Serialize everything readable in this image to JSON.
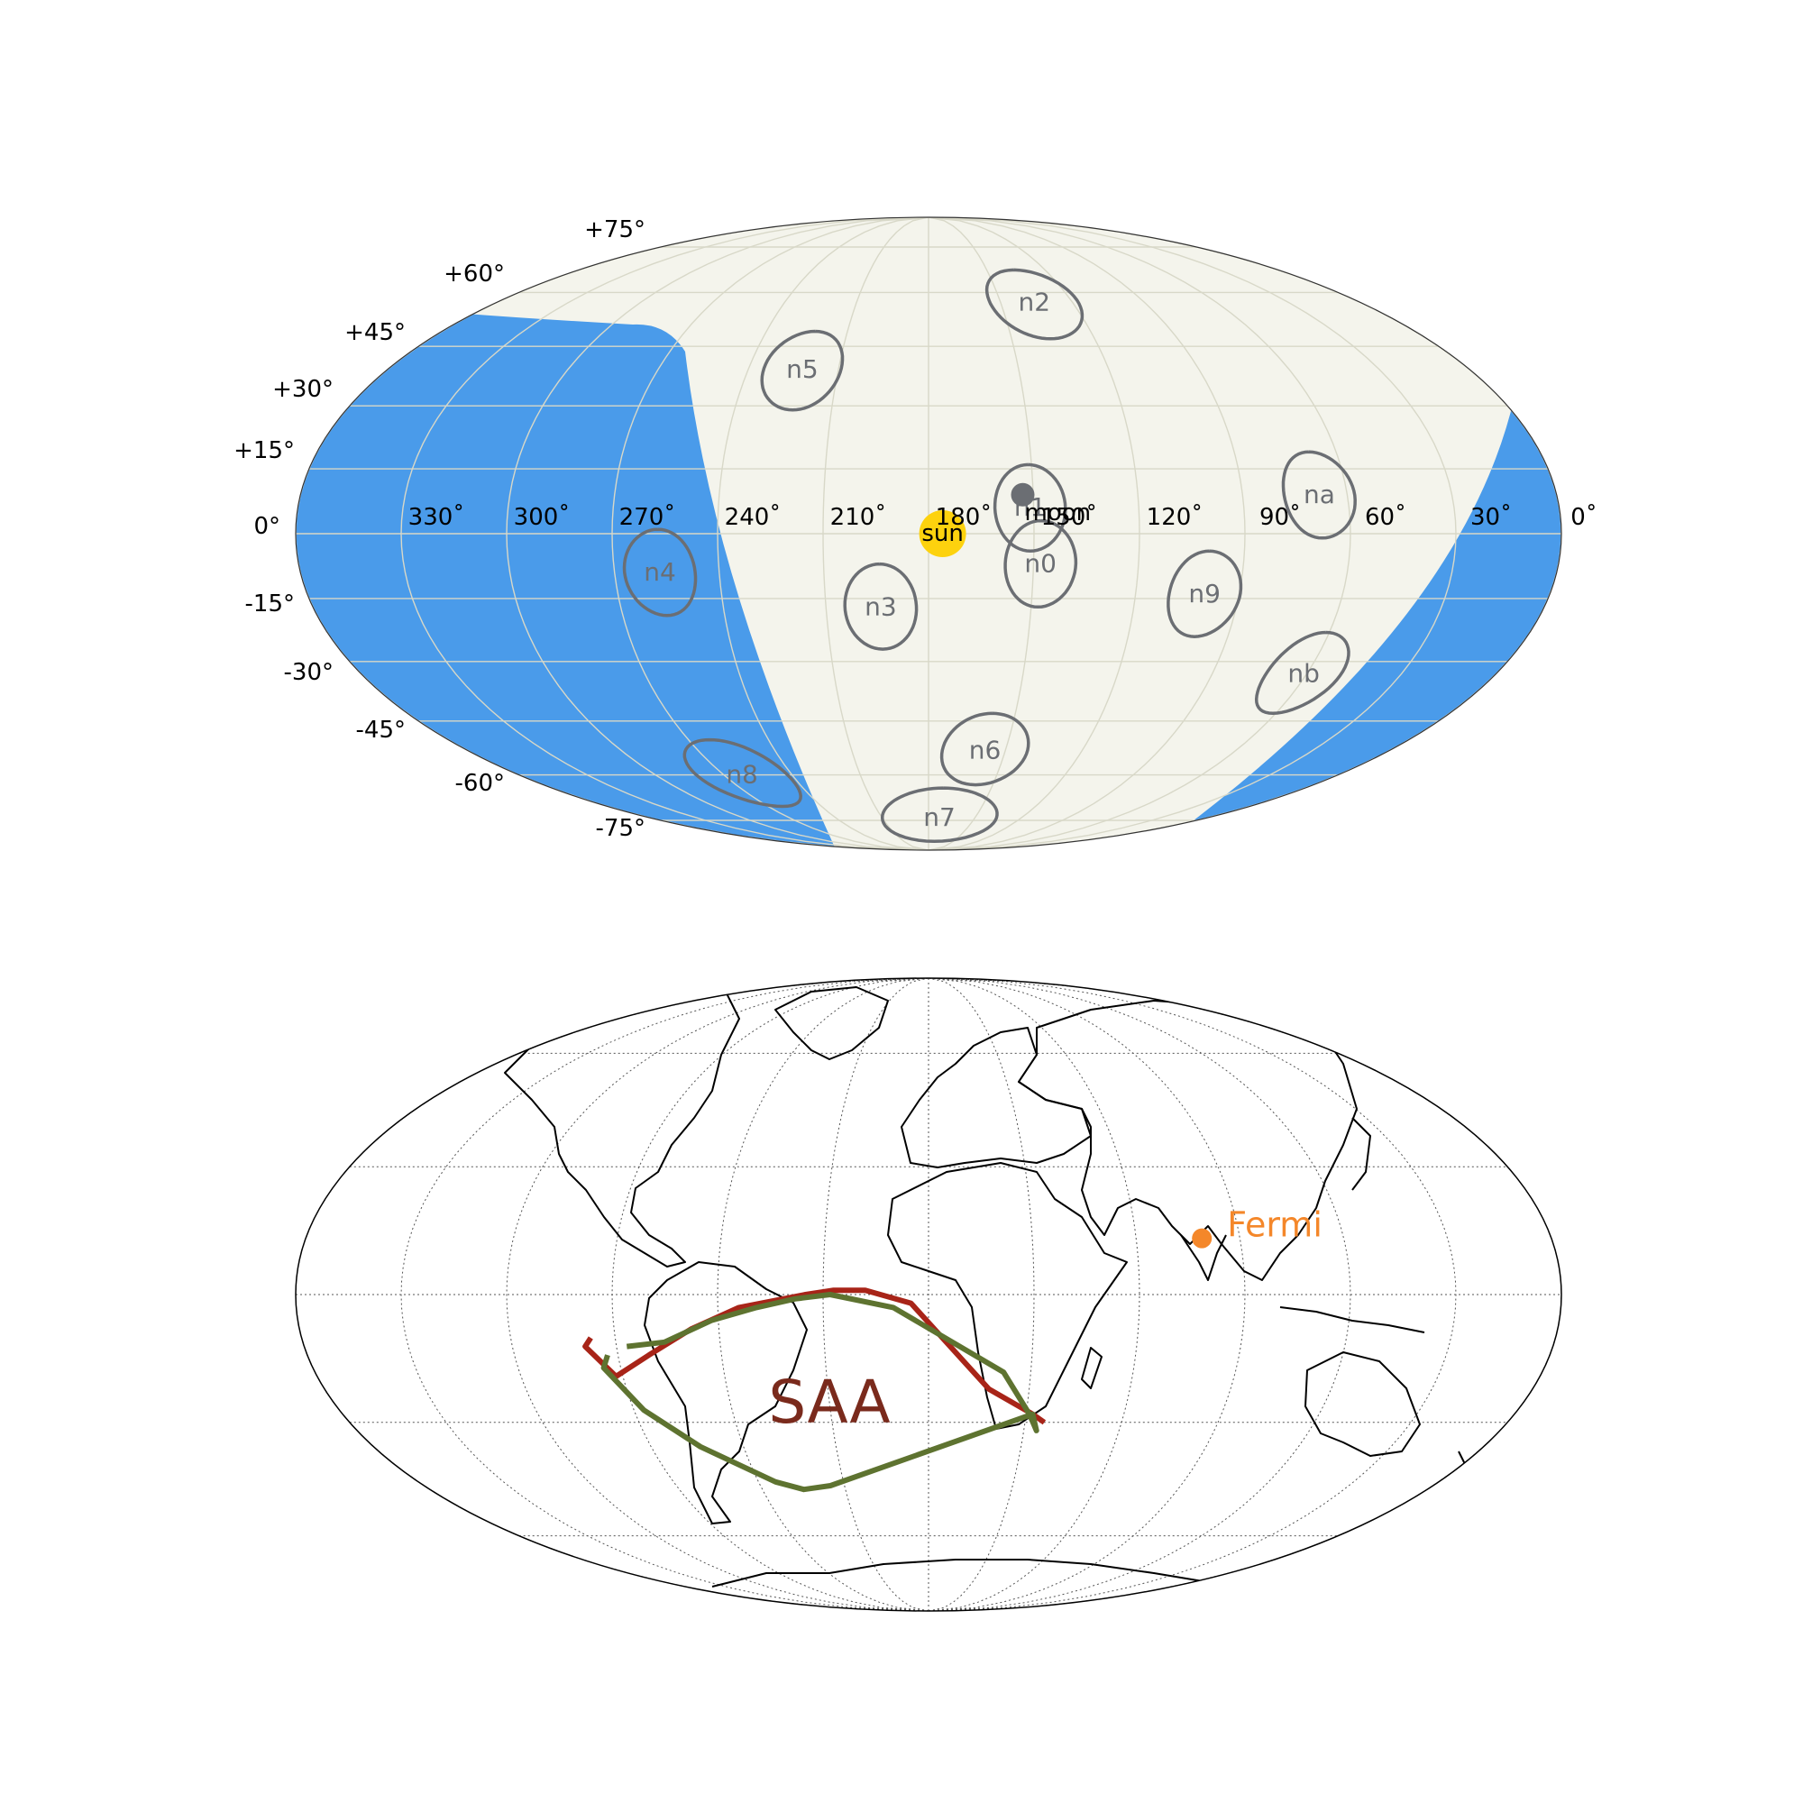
{
  "sky_map": {
    "lat_labels": [
      "+75°",
      "+60°",
      "+45°",
      "+30°",
      "+15°",
      "0°",
      "-15°",
      "-30°",
      "-45°",
      "-60°",
      "-75°"
    ],
    "lon_labels": [
      "330˚",
      "300˚",
      "270˚",
      "240˚",
      "210˚",
      "180˚",
      "150˚",
      "120˚",
      "90˚",
      "60˚",
      "30˚",
      "0˚"
    ],
    "colors": {
      "background": "#f4f4ec",
      "earth_occultation": "#4a9bea",
      "detector_ring": "#6b6e73",
      "sun": "#fdd20e",
      "moon": "#6b6e73",
      "grid": "#d8d8c8"
    },
    "detectors": [
      {
        "name": "n0",
        "ra": 148,
        "dec": -7,
        "radius_deg": 10
      },
      {
        "name": "n1",
        "ra": 151,
        "dec": 6,
        "radius_deg": 10
      },
      {
        "name": "n2",
        "ra": 136,
        "dec": 57,
        "radius_deg": 10
      },
      {
        "name": "n3",
        "ra": 194,
        "dec": -17,
        "radius_deg": 10
      },
      {
        "name": "n4",
        "ra": 257,
        "dec": -9,
        "radius_deg": 10
      },
      {
        "name": "n5",
        "ra": 222,
        "dec": 39,
        "radius_deg": 10
      },
      {
        "name": "n6",
        "ra": 158,
        "dec": -53,
        "radius_deg": 10
      },
      {
        "name": "n7",
        "ra": 173,
        "dec": -74,
        "radius_deg": 10
      },
      {
        "name": "n8",
        "ra": 262,
        "dec": -60,
        "radius_deg": 10
      },
      {
        "name": "n9",
        "ra": 100,
        "dec": -14,
        "radius_deg": 10
      },
      {
        "name": "na",
        "ra": 68,
        "dec": 9,
        "radius_deg": 10
      },
      {
        "name": "nb",
        "ra": 61,
        "dec": -33,
        "radius_deg": 10
      }
    ],
    "sun": {
      "label": "sun",
      "ra": 176,
      "dec": 0
    },
    "moon": {
      "label": "moon",
      "ra": 153,
      "dec": 9
    }
  },
  "earth_map": {
    "fermi_label": "Fermi",
    "fermi": {
      "lon": 79,
      "lat": 13
    },
    "saa_label": "SAA",
    "colors": {
      "fermi": "#f4872a",
      "saa_text": "#7a2a1c",
      "saa_red": "#a82418",
      "saa_green": "#5e7330",
      "coast": "#000000",
      "grid": "#555555"
    },
    "saa_red_polygon": [
      [
        -97,
        -10
      ],
      [
        -99,
        -12
      ],
      [
        -92,
        -19
      ],
      [
        -81,
        -14
      ],
      [
        -68,
        -8
      ],
      [
        -54,
        -3
      ],
      [
        -35,
        0
      ],
      [
        -27,
        1
      ],
      [
        -18,
        1
      ],
      [
        -5,
        -2
      ],
      [
        18,
        -22
      ],
      [
        32,
        -28
      ],
      [
        36,
        -30
      ]
    ],
    "saa_green_polygon": [
      [
        -93,
        -14
      ],
      [
        -95,
        -17
      ],
      [
        -87,
        -27
      ],
      [
        -74,
        -36
      ],
      [
        -54,
        -45
      ],
      [
        -45,
        -47
      ],
      [
        -35,
        -46
      ],
      [
        32,
        -28
      ],
      [
        34,
        -32
      ],
      [
        31,
        -28
      ],
      [
        22,
        -18
      ],
      [
        -10,
        -3
      ],
      [
        -28,
        0
      ],
      [
        -38,
        -1
      ],
      [
        -49,
        -3
      ],
      [
        -62,
        -6
      ],
      [
        -76,
        -11
      ],
      [
        -87,
        -12
      ]
    ]
  }
}
